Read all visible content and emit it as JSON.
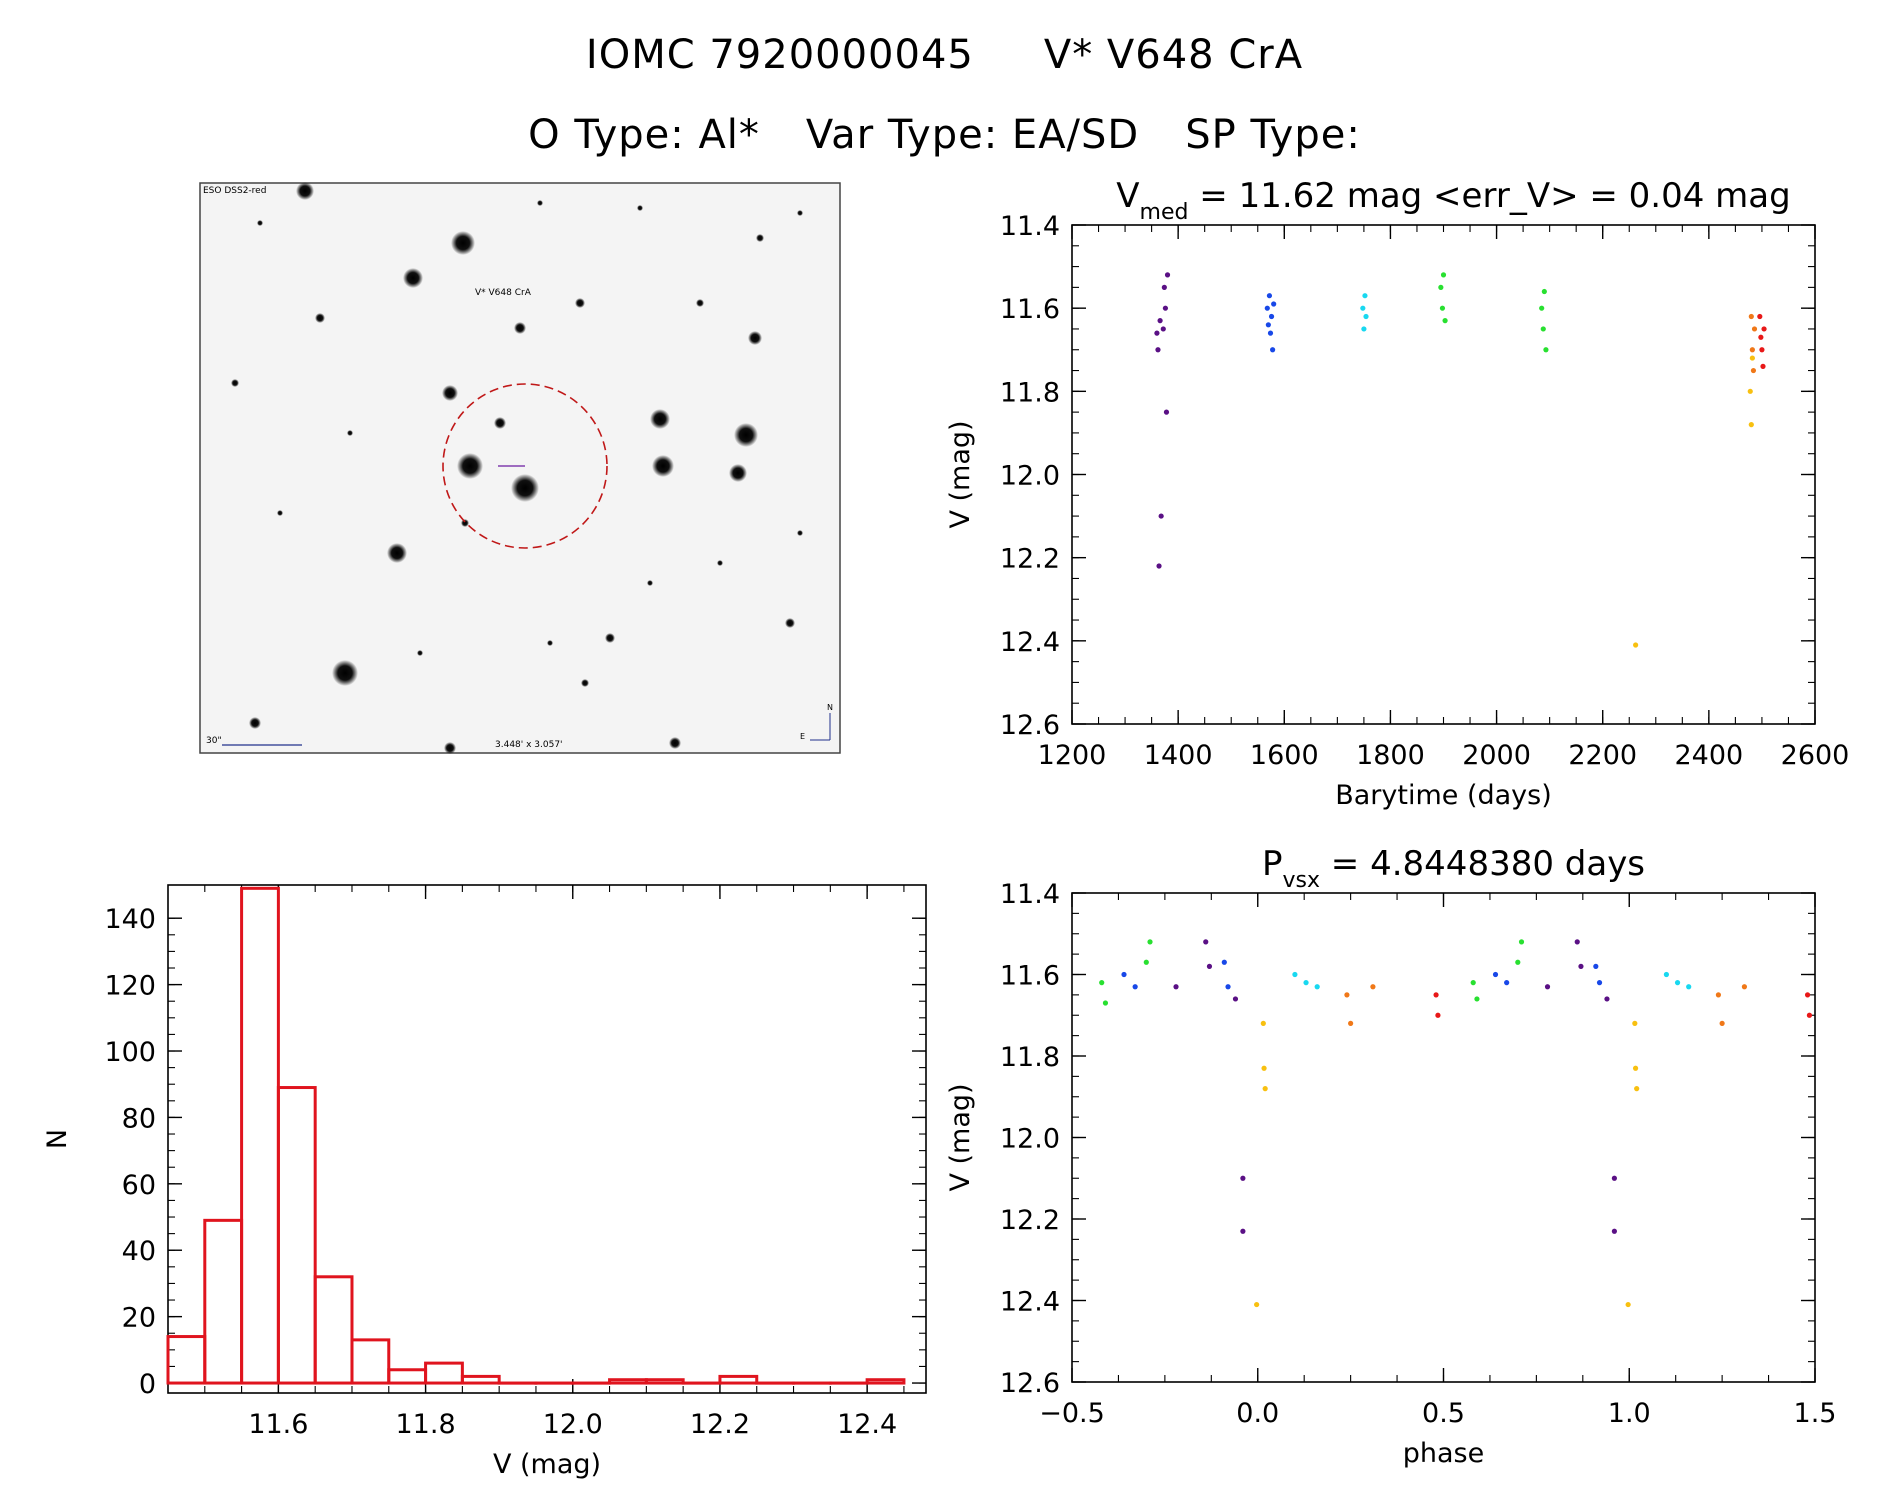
{
  "header": {
    "iomc": "IOMC 7920000045",
    "star": "V* V648 CrA",
    "otype": "O Type: Al*",
    "vartype": "Var Type: EA/SD",
    "sptype": "SP Type:"
  },
  "finder": {
    "survey_label": "ESO DSS2-red",
    "target_label": "V* V648 CrA",
    "scale_label": "30\"",
    "size_label": "3.448' x 3.057'",
    "north_label": "N",
    "east_label": "E"
  },
  "colors": {
    "axis": "#000000",
    "histogram": "#e0141e",
    "purple": "#5a1085",
    "blue": "#1848e8",
    "cyan": "#18d8f0",
    "green": "#28e030",
    "orange": "#f07818",
    "yellow": "#f8c010",
    "red": "#e81818",
    "finder_circle": "#c01818",
    "finder_text": "#c01818",
    "finder_text_blue": "#20308c"
  },
  "chart_data": [
    {
      "type": "scatter",
      "title_prefix": "V",
      "title_sub": "med",
      "title_suffix": " = 11.62 mag <err_V> = 0.04 mag",
      "xlabel": "Barytime (days)",
      "ylabel": "V (mag)",
      "xlim": [
        1200,
        2600
      ],
      "ylim": [
        12.6,
        11.4
      ],
      "xticks": [
        "1200",
        "1400",
        "1600",
        "1800",
        "2000",
        "2200",
        "2400",
        "2600"
      ],
      "yticks": [
        "11.4",
        "11.6",
        "11.8",
        "12.0",
        "12.2",
        "12.4",
        "12.6"
      ],
      "series": [
        {
          "color": "purple",
          "x": [
            1360,
            1362,
            1364,
            1366,
            1368,
            1372,
            1374,
            1376,
            1378,
            1380
          ],
          "y": [
            11.66,
            11.7,
            12.22,
            11.63,
            12.1,
            11.65,
            11.55,
            11.6,
            11.85,
            11.52
          ]
        },
        {
          "color": "blue",
          "x": [
            1568,
            1570,
            1572,
            1574,
            1576,
            1578,
            1580
          ],
          "y": [
            11.6,
            11.64,
            11.57,
            11.66,
            11.62,
            11.7,
            11.59
          ]
        },
        {
          "color": "cyan",
          "x": [
            1748,
            1750,
            1752,
            1754
          ],
          "y": [
            11.6,
            11.65,
            11.57,
            11.62
          ]
        },
        {
          "color": "green",
          "x": [
            1895,
            1898,
            1900,
            1903,
            2085,
            2088,
            2090,
            2093
          ],
          "y": [
            11.55,
            11.6,
            11.52,
            11.63,
            11.6,
            11.65,
            11.56,
            11.7
          ]
        },
        {
          "color": "yellow",
          "x": [
            2262,
            2478,
            2480,
            2482
          ],
          "y": [
            12.41,
            11.8,
            11.88,
            11.72
          ]
        },
        {
          "color": "orange",
          "x": [
            2480,
            2482,
            2484,
            2486
          ],
          "y": [
            11.62,
            11.7,
            11.75,
            11.65
          ]
        },
        {
          "color": "red",
          "x": [
            2496,
            2498,
            2500,
            2502,
            2504
          ],
          "y": [
            11.62,
            11.67,
            11.7,
            11.74,
            11.65
          ]
        }
      ]
    },
    {
      "type": "bar",
      "xlabel": "V (mag)",
      "ylabel": "N",
      "xlim": [
        11.45,
        12.48
      ],
      "ylim": [
        -3,
        150
      ],
      "xticks": [
        "11.6",
        "11.8",
        "12.0",
        "12.2",
        "12.4"
      ],
      "yticks": [
        "0",
        "20",
        "40",
        "60",
        "80",
        "100",
        "120",
        "140"
      ],
      "bin_width": 0.05,
      "bins": [
        {
          "x": 11.475,
          "n": 14
        },
        {
          "x": 11.525,
          "n": 49
        },
        {
          "x": 11.575,
          "n": 149
        },
        {
          "x": 11.625,
          "n": 89
        },
        {
          "x": 11.675,
          "n": 32
        },
        {
          "x": 11.725,
          "n": 13
        },
        {
          "x": 11.775,
          "n": 4
        },
        {
          "x": 11.825,
          "n": 6
        },
        {
          "x": 11.875,
          "n": 2
        },
        {
          "x": 11.925,
          "n": 0
        },
        {
          "x": 11.975,
          "n": 0
        },
        {
          "x": 12.025,
          "n": 0
        },
        {
          "x": 12.075,
          "n": 1
        },
        {
          "x": 12.125,
          "n": 1
        },
        {
          "x": 12.175,
          "n": 0
        },
        {
          "x": 12.225,
          "n": 2
        },
        {
          "x": 12.275,
          "n": 0
        },
        {
          "x": 12.325,
          "n": 0
        },
        {
          "x": 12.375,
          "n": 0
        },
        {
          "x": 12.425,
          "n": 1
        }
      ]
    },
    {
      "type": "scatter",
      "title_prefix": "P",
      "title_sub": "vsx",
      "title_suffix": " = 4.8448380 days",
      "xlabel": "phase",
      "ylabel": "V (mag)",
      "xlim": [
        -0.5,
        1.5
      ],
      "ylim": [
        12.6,
        11.4
      ],
      "xticks": [
        "−0.5",
        "0.0",
        "0.5",
        "1.0",
        "1.5"
      ],
      "yticks": [
        "11.4",
        "11.6",
        "11.8",
        "12.0",
        "12.2",
        "12.4",
        "12.6"
      ],
      "series": [
        {
          "color": "green",
          "x": [
            -0.42,
            -0.41,
            -0.3,
            -0.29,
            0.58,
            0.59,
            0.7,
            0.71
          ],
          "y": [
            11.62,
            11.67,
            11.57,
            11.52,
            11.62,
            11.66,
            11.57,
            11.52
          ]
        },
        {
          "color": "blue",
          "x": [
            -0.36,
            -0.33,
            -0.09,
            -0.08,
            0.64,
            0.67,
            0.91,
            0.92
          ],
          "y": [
            11.6,
            11.63,
            11.57,
            11.63,
            11.6,
            11.62,
            11.58,
            11.62
          ]
        },
        {
          "color": "purple",
          "x": [
            -0.22,
            -0.14,
            -0.13,
            -0.06,
            -0.04,
            -0.04,
            0.78,
            0.86,
            0.87,
            0.94,
            0.96,
            0.96
          ],
          "y": [
            11.63,
            11.52,
            11.58,
            11.66,
            12.1,
            12.23,
            11.63,
            11.52,
            11.58,
            11.66,
            12.1,
            12.23
          ]
        },
        {
          "color": "cyan",
          "x": [
            0.1,
            0.13,
            0.16,
            1.1,
            1.13,
            1.16
          ],
          "y": [
            11.6,
            11.62,
            11.63,
            11.6,
            11.62,
            11.63
          ]
        },
        {
          "color": "orange",
          "x": [
            0.24,
            0.25,
            0.31,
            1.24,
            1.25,
            1.31
          ],
          "y": [
            11.65,
            11.72,
            11.63,
            11.65,
            11.72,
            11.63
          ]
        },
        {
          "color": "yellow",
          "x": [
            -0.003,
            0.015,
            0.017,
            0.02,
            0.997,
            1.015,
            1.017,
            1.02
          ],
          "y": [
            12.41,
            11.72,
            11.83,
            11.88,
            12.41,
            11.72,
            11.83,
            11.88
          ]
        },
        {
          "color": "red",
          "x": [
            0.48,
            0.485,
            1.48,
            1.485
          ],
          "y": [
            11.65,
            11.7,
            11.65,
            11.7
          ]
        }
      ]
    }
  ]
}
